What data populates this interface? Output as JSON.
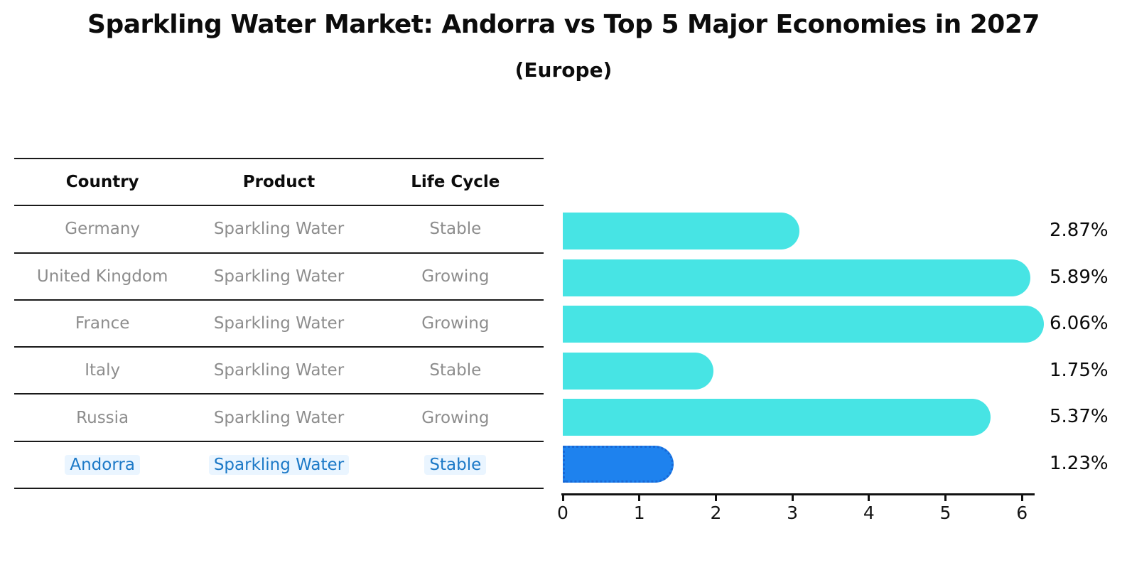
{
  "title": "Sparkling Water Market: Andorra vs Top 5 Major Economies in 2027",
  "subtitle": "(Europe)",
  "table": {
    "headers": [
      "Country",
      "Product",
      "Life Cycle"
    ],
    "rows": [
      {
        "country": "Germany",
        "product": "Sparkling Water",
        "life_cycle": "Stable",
        "highlighted": false
      },
      {
        "country": "United Kingdom",
        "product": "Sparkling Water",
        "life_cycle": "Growing",
        "highlighted": false
      },
      {
        "country": "France",
        "product": "Sparkling Water",
        "life_cycle": "Growing",
        "highlighted": false
      },
      {
        "country": "Italy",
        "product": "Sparkling Water",
        "life_cycle": "Stable",
        "highlighted": false
      },
      {
        "country": "Russia",
        "product": "Sparkling Water",
        "life_cycle": "Growing",
        "highlighted": false
      },
      {
        "country": "Andorra",
        "product": "Sparkling Water",
        "life_cycle": "Stable",
        "highlighted": true
      }
    ]
  },
  "chart_data": {
    "type": "bar",
    "orientation": "horizontal",
    "title": "Sparkling Water Market: Andorra vs Top 5 Major Economies in 2027",
    "subtitle": "(Europe)",
    "categories": [
      "Germany",
      "United Kingdom",
      "France",
      "Italy",
      "Russia",
      "Andorra"
    ],
    "values": [
      2.87,
      5.89,
      6.06,
      1.75,
      5.37,
      1.23
    ],
    "value_labels": [
      "2.87%",
      "5.89%",
      "6.06%",
      "1.75%",
      "5.37%",
      "1.23%"
    ],
    "xlabel": "",
    "ylabel": "",
    "xlim": [
      0,
      6.2
    ],
    "x_ticks": [
      "0",
      "1",
      "2",
      "3",
      "4",
      "5",
      "6"
    ],
    "grid": false,
    "legend": false,
    "bar_color": "#47E4E4",
    "highlight_index": 5,
    "highlight_color": "#1E82EE",
    "highlight_border_color": "#1868D6"
  },
  "colors": {
    "table_line": "#1a1a1a",
    "table_text": "#8d8d8d",
    "header_text": "#0c0c0c",
    "highlight_text": "#1c79c7",
    "axis": "#111111"
  }
}
